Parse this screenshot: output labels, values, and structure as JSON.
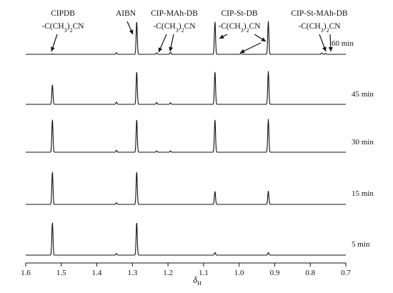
{
  "chart_data": {
    "type": "line",
    "xlabel": "δ",
    "xlabel_sub": "H",
    "xlim": [
      1.6,
      0.7
    ],
    "x_ticks": [
      1.6,
      1.5,
      1.4,
      1.3,
      1.2,
      1.1,
      1.0,
      0.9,
      0.8,
      0.7
    ],
    "x_tick_labels": [
      "1.6",
      "1.5",
      "1.4",
      "1.3",
      "1.2",
      "1.1",
      "1.0",
      "0.9",
      "0.8",
      "0.7"
    ],
    "series": [
      {
        "name": "60 min",
        "peaks": [
          {
            "ppm": 1.525,
            "height": 0.01
          },
          {
            "ppm": 1.345,
            "height": 0.05
          },
          {
            "ppm": 1.288,
            "height": 1.0
          },
          {
            "ppm": 1.232,
            "height": 0.05
          },
          {
            "ppm": 1.193,
            "height": 0.06
          },
          {
            "ppm": 1.068,
            "height": 1.0
          },
          {
            "ppm": 0.995,
            "height": 0.03
          },
          {
            "ppm": 0.918,
            "height": 1.0
          },
          {
            "ppm": 0.768,
            "height": 0.04
          },
          {
            "ppm": 0.757,
            "height": 0.03
          }
        ]
      },
      {
        "name": "45 min",
        "peaks": [
          {
            "ppm": 1.525,
            "height": 0.6
          },
          {
            "ppm": 1.345,
            "height": 0.07
          },
          {
            "ppm": 1.288,
            "height": 1.0
          },
          {
            "ppm": 1.232,
            "height": 0.06
          },
          {
            "ppm": 1.193,
            "height": 0.05
          },
          {
            "ppm": 1.068,
            "height": 1.0
          },
          {
            "ppm": 0.918,
            "height": 1.0
          }
        ]
      },
      {
        "name": "30 min",
        "peaks": [
          {
            "ppm": 1.525,
            "height": 1.0
          },
          {
            "ppm": 1.345,
            "height": 0.06
          },
          {
            "ppm": 1.288,
            "height": 1.0
          },
          {
            "ppm": 1.232,
            "height": 0.04
          },
          {
            "ppm": 1.193,
            "height": 0.04
          },
          {
            "ppm": 1.068,
            "height": 1.0
          },
          {
            "ppm": 0.918,
            "height": 1.0
          }
        ]
      },
      {
        "name": "15 min",
        "peaks": [
          {
            "ppm": 1.525,
            "height": 1.0
          },
          {
            "ppm": 1.345,
            "height": 0.05
          },
          {
            "ppm": 1.288,
            "height": 1.0
          },
          {
            "ppm": 1.068,
            "height": 0.4
          },
          {
            "ppm": 0.918,
            "height": 0.4
          }
        ]
      },
      {
        "name": "5 min",
        "peaks": [
          {
            "ppm": 1.525,
            "height": 1.0
          },
          {
            "ppm": 1.345,
            "height": 0.05
          },
          {
            "ppm": 1.288,
            "height": 1.0
          },
          {
            "ppm": 1.068,
            "height": 0.08
          },
          {
            "ppm": 0.918,
            "height": 0.08
          }
        ]
      }
    ],
    "annotations": [
      {
        "lines": [
          "CIPDB",
          "-C(CH",
          "3",
          ")",
          "2",
          "CN"
        ],
        "line1": "CIPDB",
        "line2": "-C(CH3)2CN",
        "target_ppm": 1.525
      },
      {
        "line1": "AIBN",
        "line2": "",
        "target_ppm": 1.288
      },
      {
        "line1": "CIP-MAh-DB",
        "line2": "-C(CH3)2CN",
        "target_ppm": [
          1.232,
          1.193
        ]
      },
      {
        "line1": "CIP-St-DB",
        "line2": "-C(CH3)2CN",
        "target_ppm": [
          1.068,
          0.995,
          0.918
        ]
      },
      {
        "line1": "CIP-St-MAh-DB",
        "line2": "-C(CH3)2CN",
        "target_ppm": [
          0.768,
          0.757
        ]
      }
    ]
  }
}
